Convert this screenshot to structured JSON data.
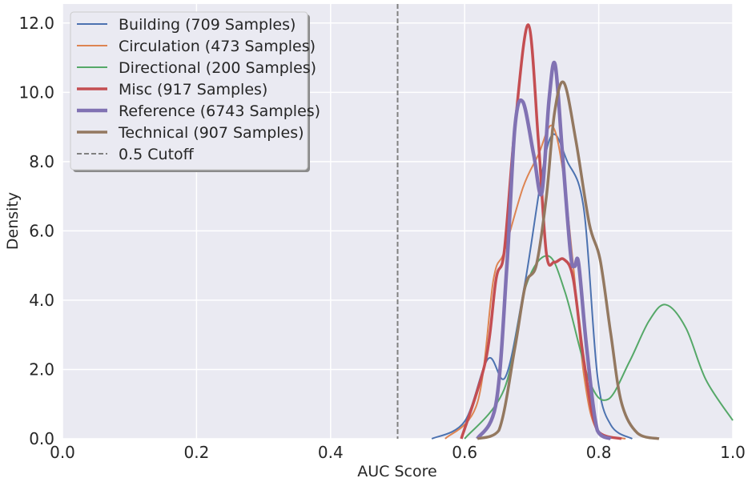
{
  "chart_data": {
    "type": "line",
    "title": "",
    "xlabel": "AUC Score",
    "ylabel": "Density",
    "xlim": [
      0.0,
      1.0
    ],
    "ylim": [
      0.0,
      12.55
    ],
    "xticks": [
      "0.0",
      "0.2",
      "0.4",
      "0.6",
      "0.8",
      "1.0"
    ],
    "yticks": [
      "0.0",
      "2.0",
      "4.0",
      "6.0",
      "8.0",
      "10.0",
      "12.0"
    ],
    "grid": true,
    "legend_position": "top-left",
    "series": [
      {
        "name": "Building (709 Samples)",
        "color": "#4c72b0",
        "width": 2,
        "points": [
          [
            0.551,
            0
          ],
          [
            0.6,
            0.5
          ],
          [
            0.635,
            2.31
          ],
          [
            0.661,
            1.79
          ],
          [
            0.69,
            4.5
          ],
          [
            0.726,
            8.6
          ],
          [
            0.754,
            7.97
          ],
          [
            0.778,
            6.6
          ],
          [
            0.798,
            1.83
          ],
          [
            0.818,
            0.4
          ],
          [
            0.85,
            0
          ]
        ]
      },
      {
        "name": "Circulation (473 Samples)",
        "color": "#dd8452",
        "width": 2,
        "points": [
          [
            0.571,
            0
          ],
          [
            0.619,
            1.04
          ],
          [
            0.643,
            4.6
          ],
          [
            0.659,
            5.4
          ],
          [
            0.687,
            7.25
          ],
          [
            0.71,
            8.2
          ],
          [
            0.73,
            9.04
          ],
          [
            0.746,
            7.8
          ],
          [
            0.762,
            5.0
          ],
          [
            0.778,
            1.83
          ],
          [
            0.798,
            0.24
          ],
          [
            0.84,
            0
          ]
        ]
      },
      {
        "name": "Directional (200 Samples)",
        "color": "#55a868",
        "width": 2,
        "points": [
          [
            0.6,
            0
          ],
          [
            0.659,
            1.43
          ],
          [
            0.691,
            4.38
          ],
          [
            0.724,
            5.28
          ],
          [
            0.75,
            4.22
          ],
          [
            0.786,
            1.67
          ],
          [
            0.814,
            1.14
          ],
          [
            0.846,
            2.23
          ],
          [
            0.875,
            3.4
          ],
          [
            0.9,
            3.87
          ],
          [
            0.93,
            3.2
          ],
          [
            0.96,
            1.7
          ],
          [
            1.0,
            0.53
          ]
        ]
      },
      {
        "name": "Misc (917 Samples)",
        "color": "#c44e52",
        "width": 3.5,
        "points": [
          [
            0.595,
            0
          ],
          [
            0.631,
            2.23
          ],
          [
            0.647,
            4.62
          ],
          [
            0.659,
            5.4
          ],
          [
            0.675,
            9.0
          ],
          [
            0.695,
            11.95
          ],
          [
            0.71,
            8.6
          ],
          [
            0.722,
            5.34
          ],
          [
            0.734,
            5.1
          ],
          [
            0.748,
            5.18
          ],
          [
            0.762,
            4.62
          ],
          [
            0.778,
            2.23
          ],
          [
            0.798,
            0.24
          ],
          [
            0.834,
            0
          ]
        ]
      },
      {
        "name": "Reference (6743 Samples)",
        "color": "#8172b3",
        "width": 4.5,
        "points": [
          [
            0.619,
            0
          ],
          [
            0.647,
            1.04
          ],
          [
            0.663,
            5.0
          ],
          [
            0.675,
            9.0
          ],
          [
            0.687,
            9.72
          ],
          [
            0.703,
            8.2
          ],
          [
            0.715,
            7.09
          ],
          [
            0.726,
            9.8
          ],
          [
            0.735,
            10.8
          ],
          [
            0.746,
            8.2
          ],
          [
            0.758,
            5.34
          ],
          [
            0.764,
            4.98
          ],
          [
            0.77,
            5.06
          ],
          [
            0.782,
            2.63
          ],
          [
            0.798,
            0.24
          ],
          [
            0.818,
            0
          ]
        ]
      },
      {
        "name": "Technical (907 Samples)",
        "color": "#937860",
        "width": 3.5,
        "points": [
          [
            0.619,
            0
          ],
          [
            0.651,
            0.24
          ],
          [
            0.675,
            2.63
          ],
          [
            0.691,
            4.46
          ],
          [
            0.707,
            5.02
          ],
          [
            0.722,
            7.0
          ],
          [
            0.734,
            9.4
          ],
          [
            0.748,
            10.28
          ],
          [
            0.766,
            8.6
          ],
          [
            0.786,
            6.2
          ],
          [
            0.802,
            5.18
          ],
          [
            0.818,
            3.03
          ],
          [
            0.834,
            1.04
          ],
          [
            0.858,
            0.16
          ],
          [
            0.89,
            0
          ]
        ]
      }
    ],
    "reference_line": {
      "name": "0.5 Cutoff",
      "x": 0.5,
      "color": "#808080",
      "style": "dashed"
    }
  }
}
